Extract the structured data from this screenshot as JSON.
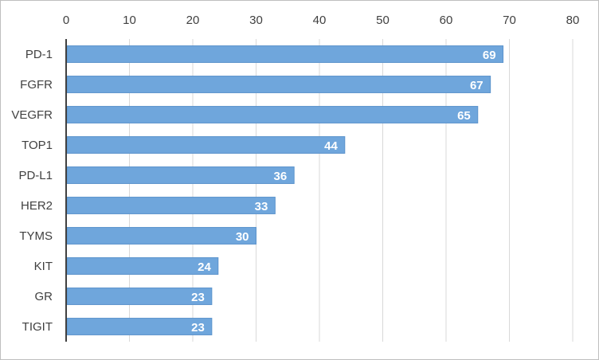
{
  "chart_data": {
    "type": "bar",
    "orientation": "horizontal",
    "title": "",
    "xlabel": "",
    "ylabel": "",
    "categories": [
      "PD-1",
      "FGFR",
      "VEGFR",
      "TOP1",
      "PD-L1",
      "HER2",
      "TYMS",
      "KIT",
      "GR",
      "TIGIT"
    ],
    "values": [
      69,
      67,
      65,
      44,
      36,
      33,
      30,
      24,
      23,
      23
    ],
    "xlim": [
      0,
      80
    ],
    "xticks": [
      0,
      10,
      20,
      30,
      40,
      50,
      60,
      70,
      80
    ],
    "x_axis_position": "top",
    "grid": "vertical",
    "legend": "none",
    "data_labels": "inside-end",
    "colors": {
      "bar_fill": "#6fa6dc",
      "bar_stroke": "#5b93cc",
      "gridline": "#d9d9d9",
      "axis": "#404040",
      "text": "#404040",
      "data_label": "#ffffff",
      "frame": "#bfbfbf"
    }
  }
}
